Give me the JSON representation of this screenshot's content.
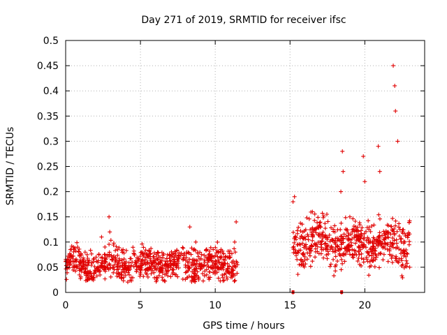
{
  "chart_data": {
    "type": "scatter",
    "title": "Day 271 of 2019, SRMTID for receiver ifsc",
    "xlabel": "GPS time / hours",
    "ylabel": "SRMTID / TECUs",
    "xlim": [
      0,
      24
    ],
    "ylim": [
      0,
      0.5
    ],
    "xticks": [
      "0",
      "5",
      "10",
      "15",
      "20"
    ],
    "yticks": [
      "0",
      "0.05",
      "0.1",
      "0.15",
      "0.2",
      "0.25",
      "0.3",
      "0.35",
      "0.4",
      "0.45",
      "0.5"
    ],
    "grid": true,
    "marker": "+",
    "color": "#e00000",
    "segments": [
      {
        "x_start": 0.0,
        "x_end": 11.5,
        "baseline": 0.055,
        "spread": 0.025
      },
      {
        "x_start": 15.2,
        "x_end": 23.0,
        "baseline": 0.1,
        "spread": 0.035
      }
    ],
    "series": [
      {
        "name": "SRMTID",
        "x": [
          0.1,
          0.4,
          0.8,
          1.0,
          1.3,
          2.0,
          2.4,
          2.9,
          2.95,
          3.5,
          4.2,
          5.0,
          5.6,
          6.3,
          7.0,
          7.6,
          8.1,
          8.3,
          8.7,
          9.3,
          10.0,
          10.8,
          11.3,
          11.4,
          15.2,
          15.3,
          15.5,
          16.0,
          16.5,
          17.0,
          17.5,
          18.0,
          18.4,
          18.5,
          18.55,
          19.0,
          19.4,
          19.9,
          20.0,
          20.5,
          20.9,
          21.0,
          21.5,
          21.9,
          22.0,
          22.05,
          22.2,
          22.5,
          23.0,
          15.2,
          18.45
        ],
        "y": [
          0.05,
          0.07,
          0.09,
          0.06,
          0.08,
          0.04,
          0.11,
          0.15,
          0.12,
          0.06,
          0.05,
          0.045,
          0.05,
          0.06,
          0.05,
          0.07,
          0.08,
          0.13,
          0.1,
          0.06,
          0.04,
          0.07,
          0.1,
          0.14,
          0.18,
          0.19,
          0.08,
          0.11,
          0.16,
          0.1,
          0.09,
          0.12,
          0.2,
          0.28,
          0.24,
          0.15,
          0.13,
          0.27,
          0.22,
          0.1,
          0.29,
          0.24,
          0.11,
          0.45,
          0.41,
          0.36,
          0.3,
          0.12,
          0.05,
          0.0,
          0.0
        ]
      }
    ]
  }
}
